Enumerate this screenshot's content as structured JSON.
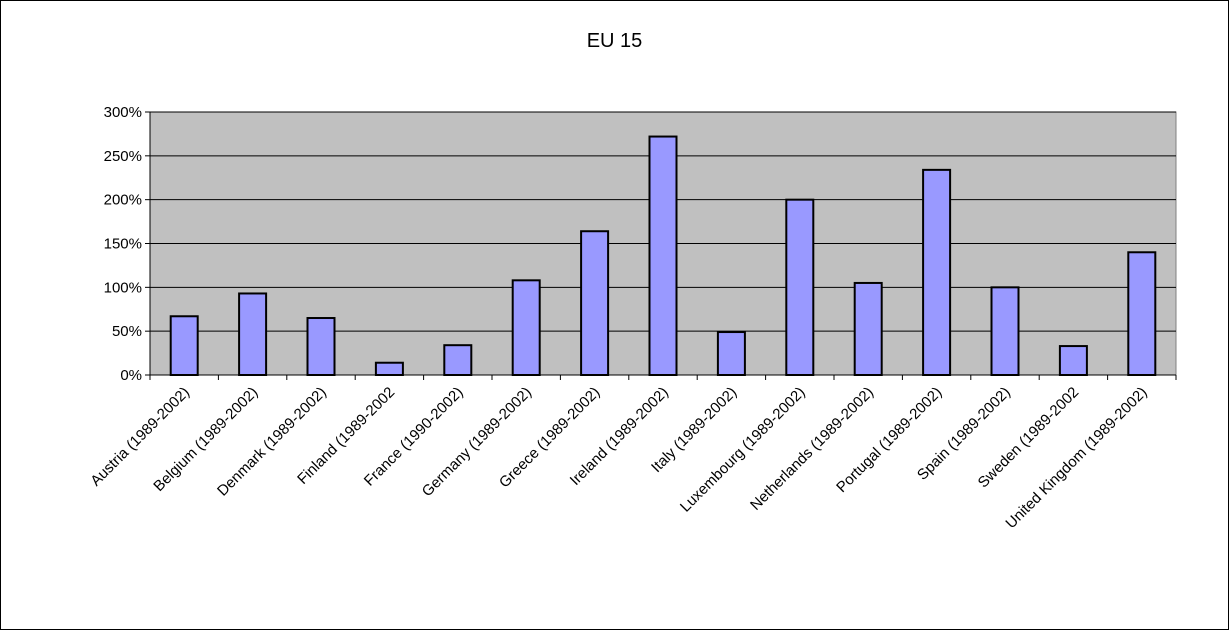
{
  "chart_data": {
    "type": "bar",
    "title": "EU 15",
    "xlabel": "",
    "ylabel": "",
    "ylim": [
      0,
      300
    ],
    "y_ticks": [
      0,
      50,
      100,
      150,
      200,
      250,
      300
    ],
    "y_tick_labels": [
      "0%",
      "50%",
      "100%",
      "150%",
      "200%",
      "250%",
      "300%"
    ],
    "grid": true,
    "legend": "none",
    "plot_background": "#c0c0c0",
    "bar_color": "#9999ff",
    "categories": [
      "Austria (1989-2002)",
      "Belgium (1989-2002)",
      "Denmark (1989-2002)",
      "Finland (1989-2002",
      "France (1990-2002)",
      "Germany (1989-2002)",
      "Greece (1989-2002)",
      "Ireland (1989-2002)",
      "Italy (1989-2002)",
      "Luxembourg (1989-2002)",
      "Netherlands (1989-2002)",
      "Portugal (1989-2002)",
      "Spain (1989-2002)",
      "Sweden (1989-2002",
      "United Kingdom (1989-2002)"
    ],
    "values": [
      67,
      93,
      65,
      14,
      34,
      108,
      164,
      272,
      49,
      200,
      105,
      234,
      100,
      33,
      140
    ]
  }
}
